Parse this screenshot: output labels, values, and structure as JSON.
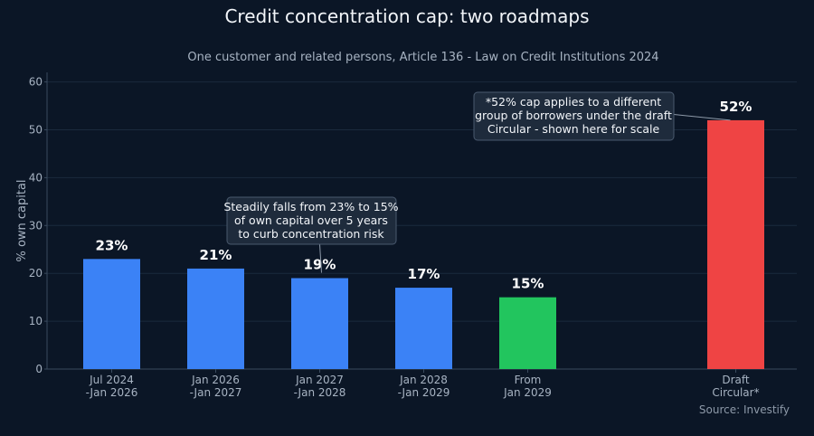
{
  "chart_data": {
    "type": "bar",
    "title": "Credit concentration cap: two roadmaps",
    "subtitle": "One customer and related persons, Article 136 - Law on Credit Institutions 2024",
    "ylabel": "% own capital",
    "ylim": [
      0,
      62
    ],
    "yticks": [
      0,
      10,
      20,
      30,
      40,
      50,
      60
    ],
    "grid": true,
    "categories": [
      [
        "Jul 2024",
        "-Jan 2026"
      ],
      [
        "Jan 2026",
        "-Jan 2027"
      ],
      [
        "Jan 2027",
        "-Jan 2028"
      ],
      [
        "Jan 2028",
        "-Jan 2029"
      ],
      [
        "From",
        "Jan 2029"
      ],
      [
        "Draft",
        "Circular*"
      ]
    ],
    "values": [
      23,
      21,
      19,
      17,
      15,
      52
    ],
    "value_labels": [
      "23%",
      "21%",
      "19%",
      "17%",
      "15%",
      "52%"
    ],
    "colors": [
      "#3b82f6",
      "#3b82f6",
      "#3b82f6",
      "#3b82f6",
      "#22c55e",
      "#ef4444"
    ],
    "annotations": [
      {
        "target_index": 2,
        "lines": [
          "Steadily falls from 23% to 15%",
          "of own capital over 5 years",
          "to curb concentration risk"
        ]
      },
      {
        "target_index": 5,
        "lines": [
          "*52% cap applies to a different",
          "group of borrowers under the draft",
          "Circular - shown here for scale"
        ]
      }
    ],
    "source": "Source: Investify"
  }
}
